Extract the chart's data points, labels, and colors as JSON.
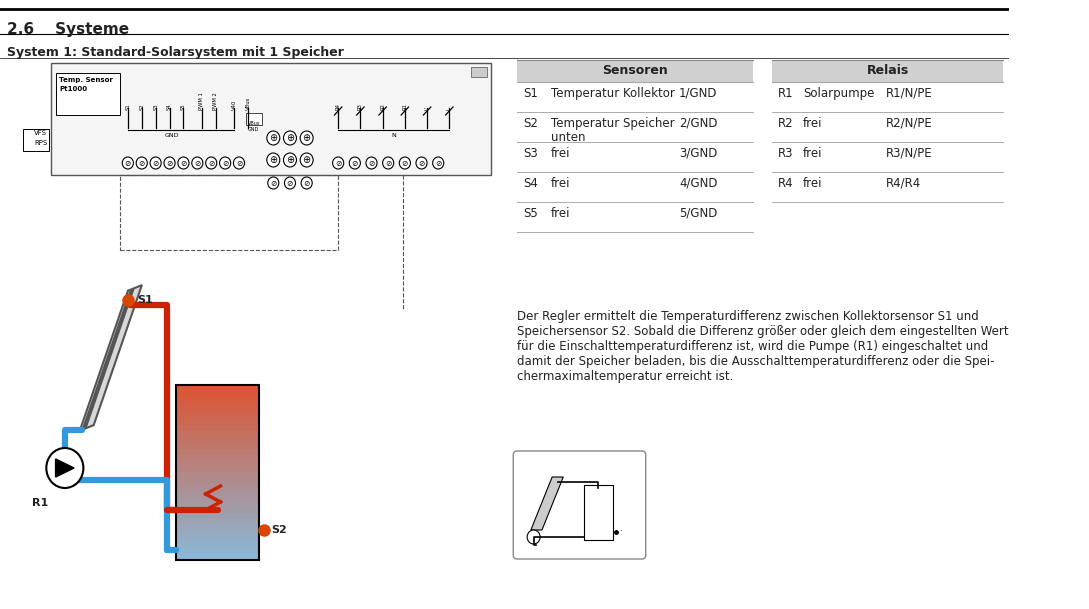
{
  "title_section": "2.6    Systeme",
  "subtitle": "System 1: Standard-Solarsystem mit 1 Speicher",
  "sensoren_header": "Sensoren",
  "relais_header": "Relais",
  "sensoren_rows": [
    [
      "S1",
      "Temperatur Kollektor",
      "1/GND"
    ],
    [
      "S2",
      "Temperatur Speicher\nunten",
      "2/GND"
    ],
    [
      "S3",
      "frei",
      "3/GND"
    ],
    [
      "S4",
      "frei",
      "4/GND"
    ],
    [
      "S5",
      "frei",
      "5/GND"
    ]
  ],
  "relais_rows": [
    [
      "R1",
      "Solarpumpe",
      "R1/N/PE"
    ],
    [
      "R2",
      "frei",
      "R2/N/PE"
    ],
    [
      "R3",
      "frei",
      "R3/N/PE"
    ],
    [
      "R4",
      "frei",
      "R4/R4"
    ]
  ],
  "description": "Der Regler ermittelt die Temperaturdifferenz zwischen Kollektorsensor S1 und\nSpeichersensor S2. Sobald die Differenz größer oder gleich dem eingestellten Wert\nfür die Einschalttemperaturdifferenz ist, wird die Pumpe (R1) eingeschaltet und\ndamit der Speicher beladen, bis die Ausschalttemperaturdifferenz oder die Spei-\nchermaximaltemperatur erreicht ist.",
  "bg_color": "#ffffff",
  "header_bg": "#d0d0d0",
  "table_line_color": "#aaaaaa",
  "text_color": "#222222",
  "red_pipe": "#cc2200",
  "blue_pipe": "#3399dd",
  "pipe_lw": 4.5
}
